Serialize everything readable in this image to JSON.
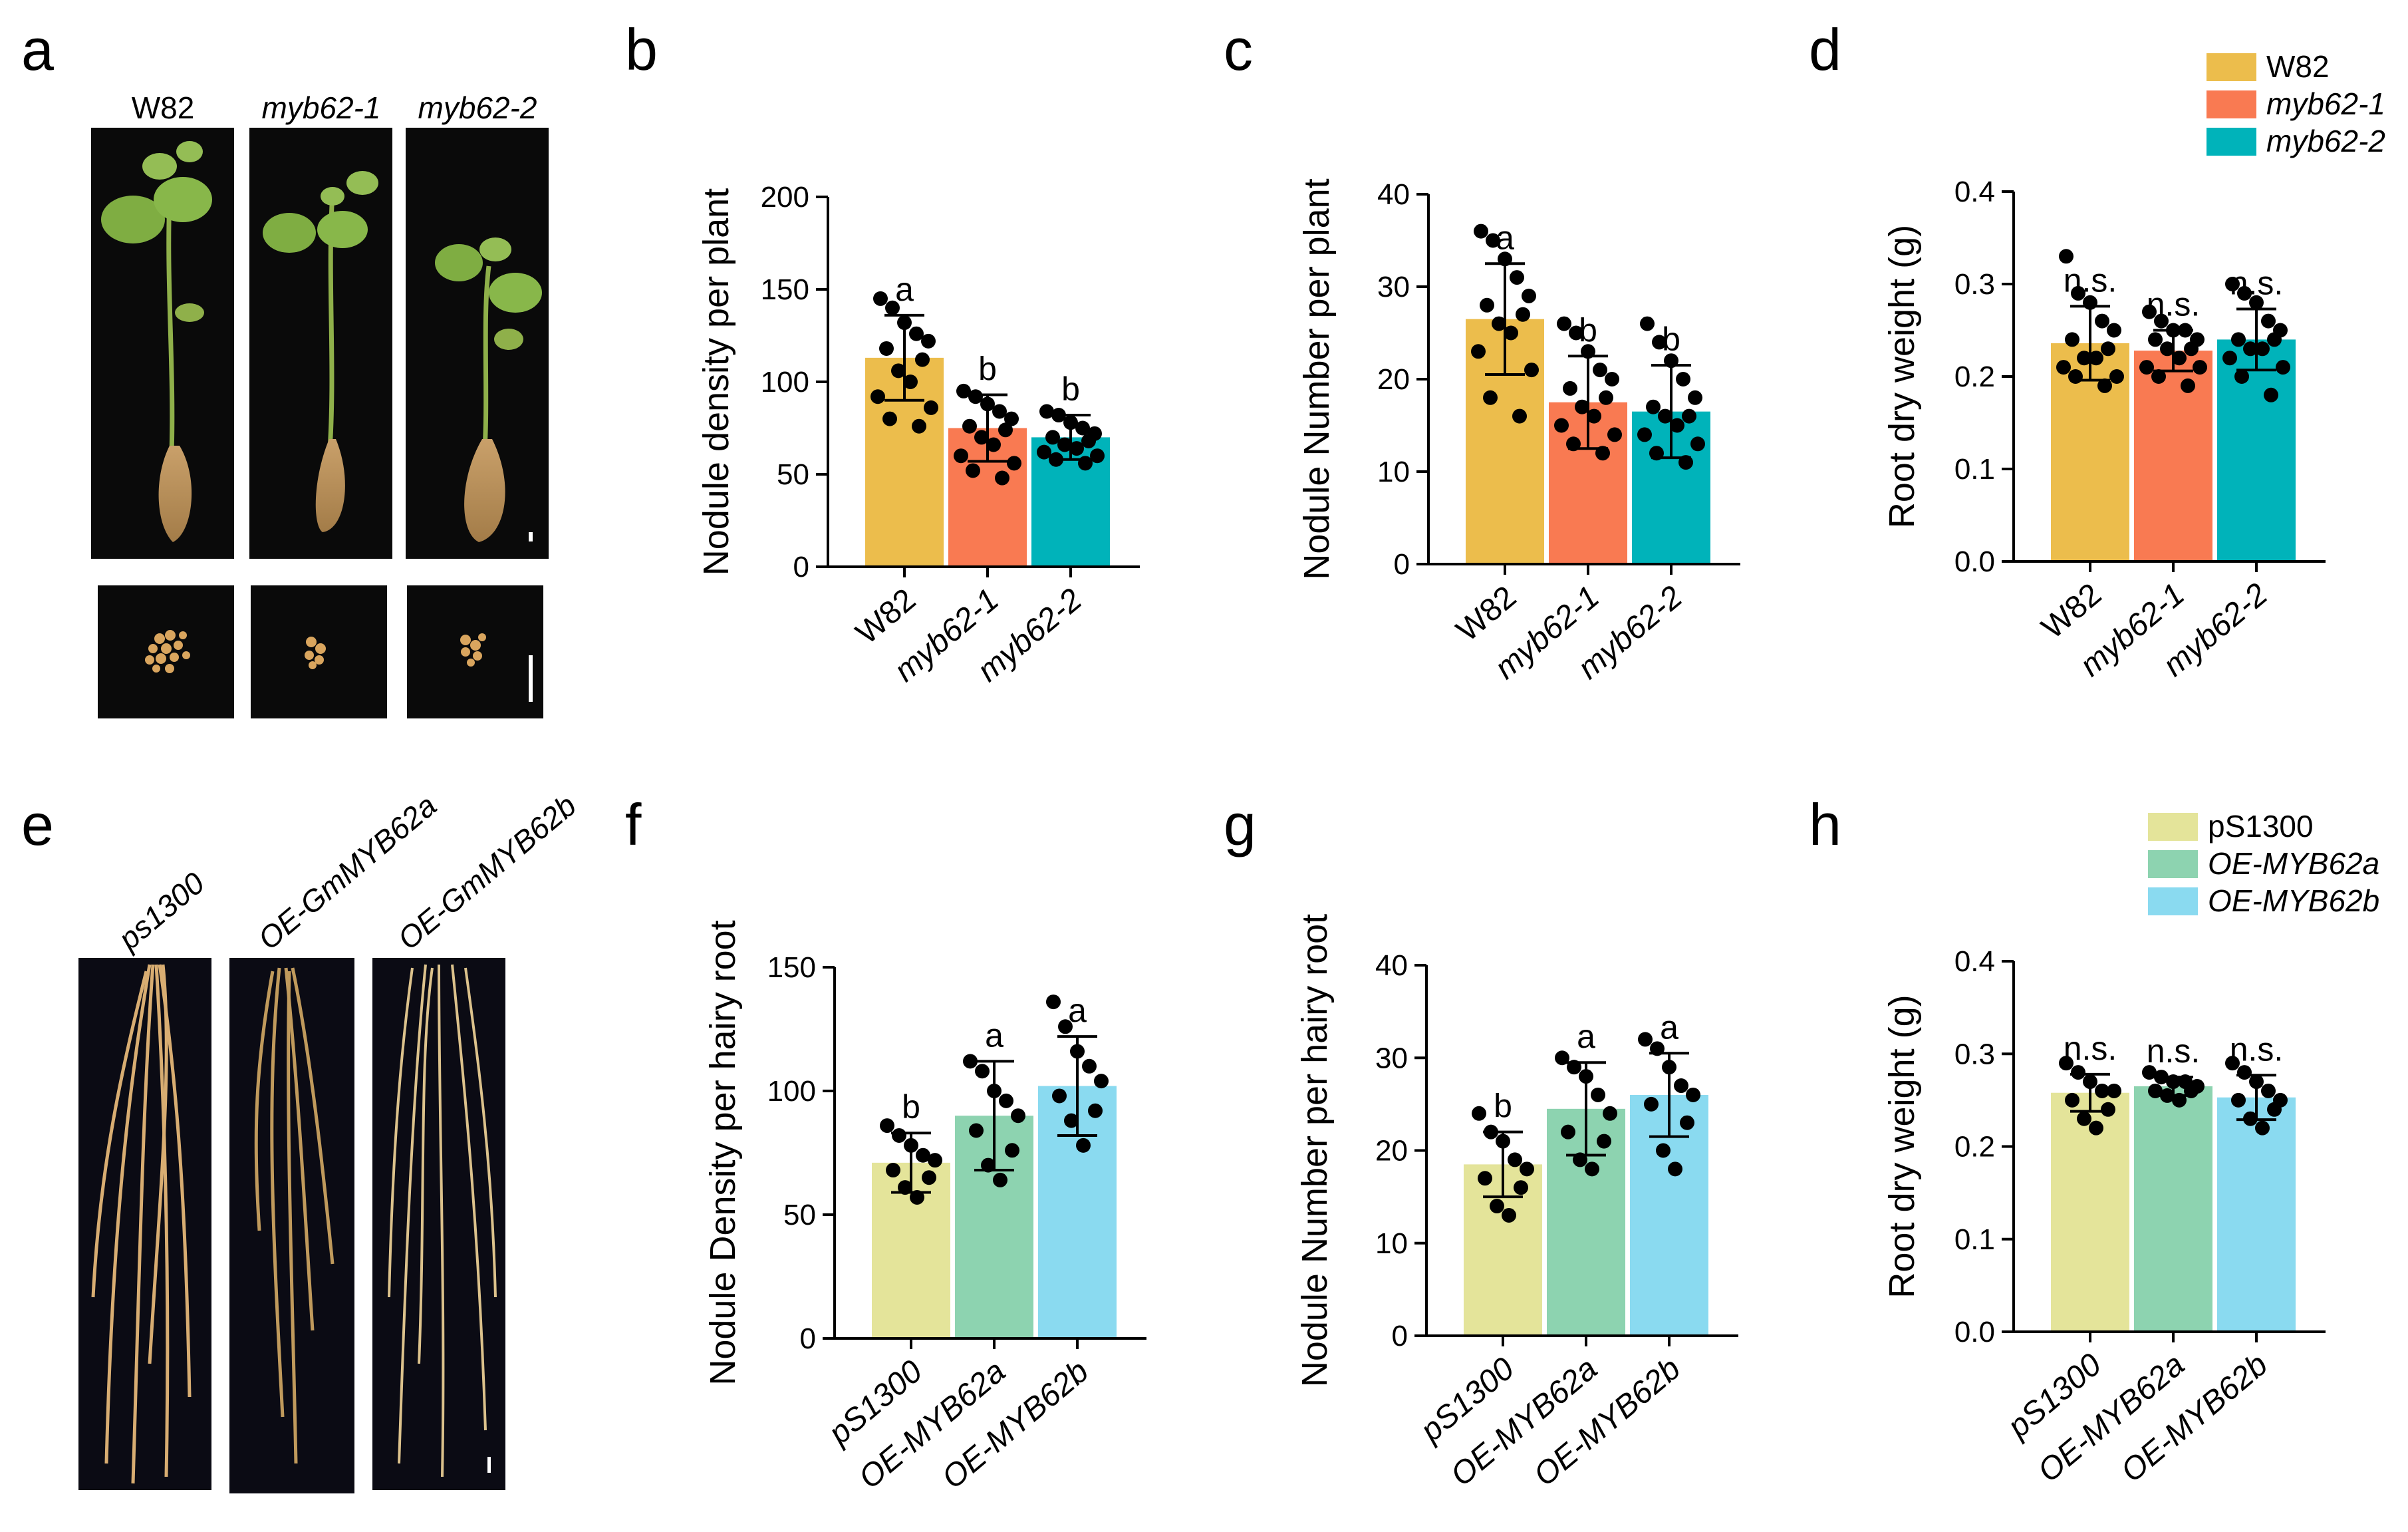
{
  "panel_letters": {
    "a": "a",
    "b": "b",
    "c": "c",
    "d": "d",
    "e": "e",
    "f": "f",
    "g": "g",
    "h": "h"
  },
  "photo_a": {
    "labels": [
      "W82",
      "myb62-1",
      "myb62-2"
    ]
  },
  "photo_e": {
    "labels": [
      "ps1300",
      "OE-GmMYB62a",
      "OE-GmMYB62b"
    ]
  },
  "colors": {
    "W82": "#ECBD4C",
    "myb62-1": "#F97A52",
    "myb62-2": "#00B3BA",
    "pS1300": "#E4E49A",
    "OE-MYB62a": "#8DD3B0",
    "OE-MYB62b": "#8ADAF0"
  },
  "legend_top": [
    {
      "label": "W82",
      "color": "#ECBD4C",
      "italic": false
    },
    {
      "label": "myb62-1",
      "color": "#F97A52",
      "italic": true
    },
    {
      "label": "myb62-2",
      "color": "#00B3BA",
      "italic": true
    }
  ],
  "legend_bottom": [
    {
      "label": "pS1300",
      "color": "#E4E49A",
      "italic": false
    },
    {
      "label": "OE-MYB62a",
      "color": "#8DD3B0",
      "italic": true
    },
    {
      "label": "OE-MYB62b",
      "color": "#8ADAF0",
      "italic": true
    }
  ],
  "chart_data": [
    {
      "panel": "b",
      "type": "bar",
      "ylabel": "Nodule density per plant",
      "ylim": [
        0,
        200
      ],
      "yticks": [
        0,
        50,
        100,
        150,
        200
      ],
      "categories": [
        "W82",
        "myb62-1",
        "myb62-2"
      ],
      "category_italic": [
        false,
        true,
        true
      ],
      "values": [
        113,
        75,
        70
      ],
      "errors": [
        23,
        18,
        12
      ],
      "significance": [
        "a",
        "b",
        "b"
      ],
      "points": [
        [
          145,
          140,
          132,
          126,
          122,
          118,
          112,
          106,
          100,
          92,
          86,
          80,
          76
        ],
        [
          95,
          92,
          88,
          84,
          80,
          76,
          74,
          70,
          66,
          60,
          56,
          52,
          48
        ],
        [
          84,
          82,
          78,
          75,
          72,
          70,
          68,
          66,
          64,
          62,
          60,
          58,
          56
        ]
      ]
    },
    {
      "panel": "c",
      "type": "bar",
      "ylabel": "Nodule Number per plant",
      "ylim": [
        0,
        40
      ],
      "yticks": [
        0,
        10,
        20,
        30,
        40
      ],
      "categories": [
        "W82",
        "myb62-1",
        "myb62-2"
      ],
      "category_italic": [
        false,
        true,
        true
      ],
      "values": [
        26.5,
        17.5,
        16.5
      ],
      "errors": [
        6,
        5,
        5
      ],
      "significance": [
        "a",
        "b",
        "b"
      ],
      "points": [
        [
          36,
          35,
          33,
          31,
          29,
          28,
          27,
          26,
          25,
          23,
          21,
          18,
          16
        ],
        [
          26,
          25,
          23,
          21,
          20,
          19,
          18,
          17,
          16,
          15,
          14,
          13,
          12
        ],
        [
          26,
          24,
          22,
          20,
          18,
          17,
          16,
          16,
          15,
          14,
          13,
          12,
          11
        ]
      ]
    },
    {
      "panel": "d",
      "type": "bar",
      "ylabel": "Root dry weight (g)",
      "ylim": [
        0,
        0.4
      ],
      "yticks": [
        "0.0",
        "0.1",
        "0.2",
        "0.3",
        "0.4"
      ],
      "categories": [
        "W82",
        "myb62-1",
        "myb62-2"
      ],
      "category_italic": [
        false,
        true,
        true
      ],
      "values": [
        0.236,
        0.228,
        0.24
      ],
      "errors": [
        0.04,
        0.022,
        0.033
      ],
      "significance": [
        "n.s.",
        "n.s.",
        "n.s."
      ],
      "points": [
        [
          0.33,
          0.29,
          0.28,
          0.26,
          0.25,
          0.24,
          0.23,
          0.22,
          0.22,
          0.21,
          0.2,
          0.2,
          0.19
        ],
        [
          0.27,
          0.26,
          0.25,
          0.25,
          0.24,
          0.24,
          0.23,
          0.23,
          0.22,
          0.21,
          0.21,
          0.2,
          0.19
        ],
        [
          0.3,
          0.29,
          0.28,
          0.26,
          0.25,
          0.24,
          0.24,
          0.23,
          0.23,
          0.22,
          0.21,
          0.2,
          0.18
        ]
      ]
    },
    {
      "panel": "f",
      "type": "bar",
      "ylabel": "Nodule Density per hairy root",
      "ylim": [
        0,
        150
      ],
      "yticks": [
        0,
        50,
        100,
        150
      ],
      "categories": [
        "pS1300",
        "OE-MYB62a",
        "OE-MYB62b"
      ],
      "category_italic": [
        true,
        true,
        true
      ],
      "values": [
        71,
        90,
        102
      ],
      "errors": [
        12,
        22,
        20
      ],
      "significance": [
        "b",
        "a",
        "a"
      ],
      "points": [
        [
          86,
          82,
          78,
          74,
          72,
          68,
          65,
          61,
          57
        ],
        [
          112,
          108,
          100,
          96,
          90,
          84,
          76,
          70,
          64
        ],
        [
          136,
          126,
          116,
          110,
          104,
          98,
          92,
          88,
          78
        ]
      ]
    },
    {
      "panel": "g",
      "type": "bar",
      "ylabel": "Nodule Number per hairy root",
      "ylim": [
        0,
        40
      ],
      "yticks": [
        0,
        10,
        20,
        30,
        40
      ],
      "categories": [
        "pS1300",
        "OE-MYB62a",
        "OE-MYB62b"
      ],
      "category_italic": [
        true,
        true,
        true
      ],
      "values": [
        18.5,
        24.5,
        26
      ],
      "errors": [
        3.5,
        5,
        4.5
      ],
      "significance": [
        "b",
        "a",
        "a"
      ],
      "points": [
        [
          24,
          22,
          21,
          19,
          18,
          17,
          16,
          14,
          13
        ],
        [
          30,
          29,
          28,
          26,
          24,
          22,
          21,
          19,
          18
        ],
        [
          32,
          31,
          29,
          27,
          26,
          25,
          23,
          20,
          18
        ]
      ]
    },
    {
      "panel": "h",
      "type": "bar",
      "ylabel": "Root dry weight (g)",
      "ylim": [
        0,
        0.4
      ],
      "yticks": [
        "0.0",
        "0.1",
        "0.2",
        "0.3",
        "0.4"
      ],
      "categories": [
        "pS1300",
        "OE-MYB62a",
        "OE-MYB62b"
      ],
      "category_italic": [
        true,
        true,
        true
      ],
      "values": [
        0.258,
        0.265,
        0.253
      ],
      "errors": [
        0.02,
        0.01,
        0.024
      ],
      "significance": [
        "n.s.",
        "n.s.",
        "n.s."
      ],
      "points": [
        [
          0.29,
          0.28,
          0.27,
          0.26,
          0.26,
          0.25,
          0.24,
          0.23,
          0.22
        ],
        [
          0.28,
          0.275,
          0.27,
          0.27,
          0.265,
          0.26,
          0.26,
          0.255,
          0.25
        ],
        [
          0.29,
          0.28,
          0.27,
          0.26,
          0.25,
          0.25,
          0.24,
          0.23,
          0.22
        ]
      ]
    }
  ]
}
